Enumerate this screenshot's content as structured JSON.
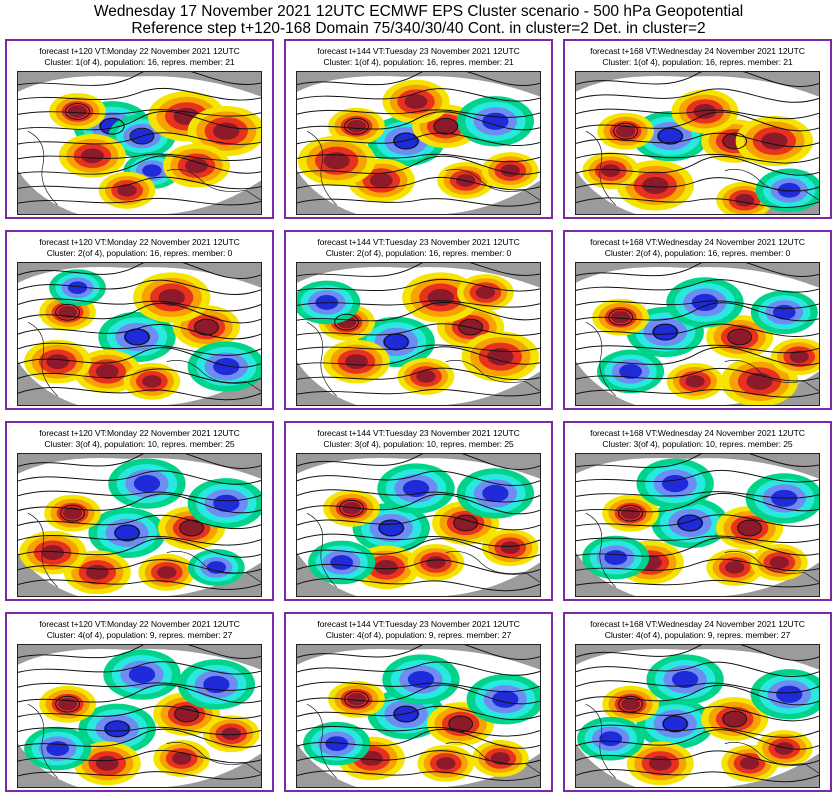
{
  "header": {
    "line1": "Wednesday 17 November 2021 12UTC ECMWF EPS Cluster scenario - 500 hPa Geopotential",
    "line2": "Reference step t+120-168 Domain 75/340/30/40 Cont. in cluster=2 Det. in cluster=2"
  },
  "colors": {
    "border": "#7a2aa8",
    "land": "#9b9b9b",
    "ocean": "#ffffff",
    "positive": [
      "#f4e400",
      "#f7a200",
      "#e8321e",
      "#8c1a2a"
    ],
    "negative": [
      "#00d48a",
      "#28e8e0",
      "#6e8cf2",
      "#1f2ad8"
    ]
  },
  "panels": [
    {
      "caption1": "forecast t+120 VT:Monday 22 November 2021 12UTC",
      "caption2": "Cluster: 1(of 4), population: 16, repres. member: 21"
    },
    {
      "caption1": "forecast t+144 VT:Tuesday 23 November 2021 12UTC",
      "caption2": "Cluster: 1(of 4), population: 16, repres. member: 21"
    },
    {
      "caption1": "forecast t+168 VT:Wednesday 24 November 2021 12UTC",
      "caption2": "Cluster: 1(of 4), population: 16, repres. member: 21"
    },
    {
      "caption1": "forecast t+120 VT:Monday 22 November 2021 12UTC",
      "caption2": "Cluster: 2(of 4), population: 16, repres. member: 0"
    },
    {
      "caption1": "forecast t+144 VT:Tuesday 23 November 2021 12UTC",
      "caption2": "Cluster: 2(of 4), population: 16, repres. member: 0"
    },
    {
      "caption1": "forecast t+168 VT:Wednesday 24 November 2021 12UTC",
      "caption2": "Cluster: 2(of 4), population: 16, repres. member: 0"
    },
    {
      "caption1": "forecast t+120 VT:Monday 22 November 2021 12UTC",
      "caption2": "Cluster: 3(of 4), population: 10, repres. member: 25"
    },
    {
      "caption1": "forecast t+144 VT:Tuesday 23 November 2021 12UTC",
      "caption2": "Cluster: 3(of 4), population: 10, repres. member: 25"
    },
    {
      "caption1": "forecast t+168 VT:Wednesday 24 November 2021 12UTC",
      "caption2": "Cluster: 3(of 4), population: 10, repres. member: 25"
    },
    {
      "caption1": "forecast t+120 VT:Monday 22 November 2021 12UTC",
      "caption2": "Cluster: 4(of 4), population: 9, repres. member: 27"
    },
    {
      "caption1": "forecast t+144 VT:Tuesday 23 November 2021 12UTC",
      "caption2": "Cluster: 4(of 4), population: 9, repres. member: 27"
    },
    {
      "caption1": "forecast t+168 VT:Wednesday 24 November 2021 12UTC",
      "caption2": "Cluster: 4(of 4), population: 9, repres. member: 27"
    }
  ]
}
